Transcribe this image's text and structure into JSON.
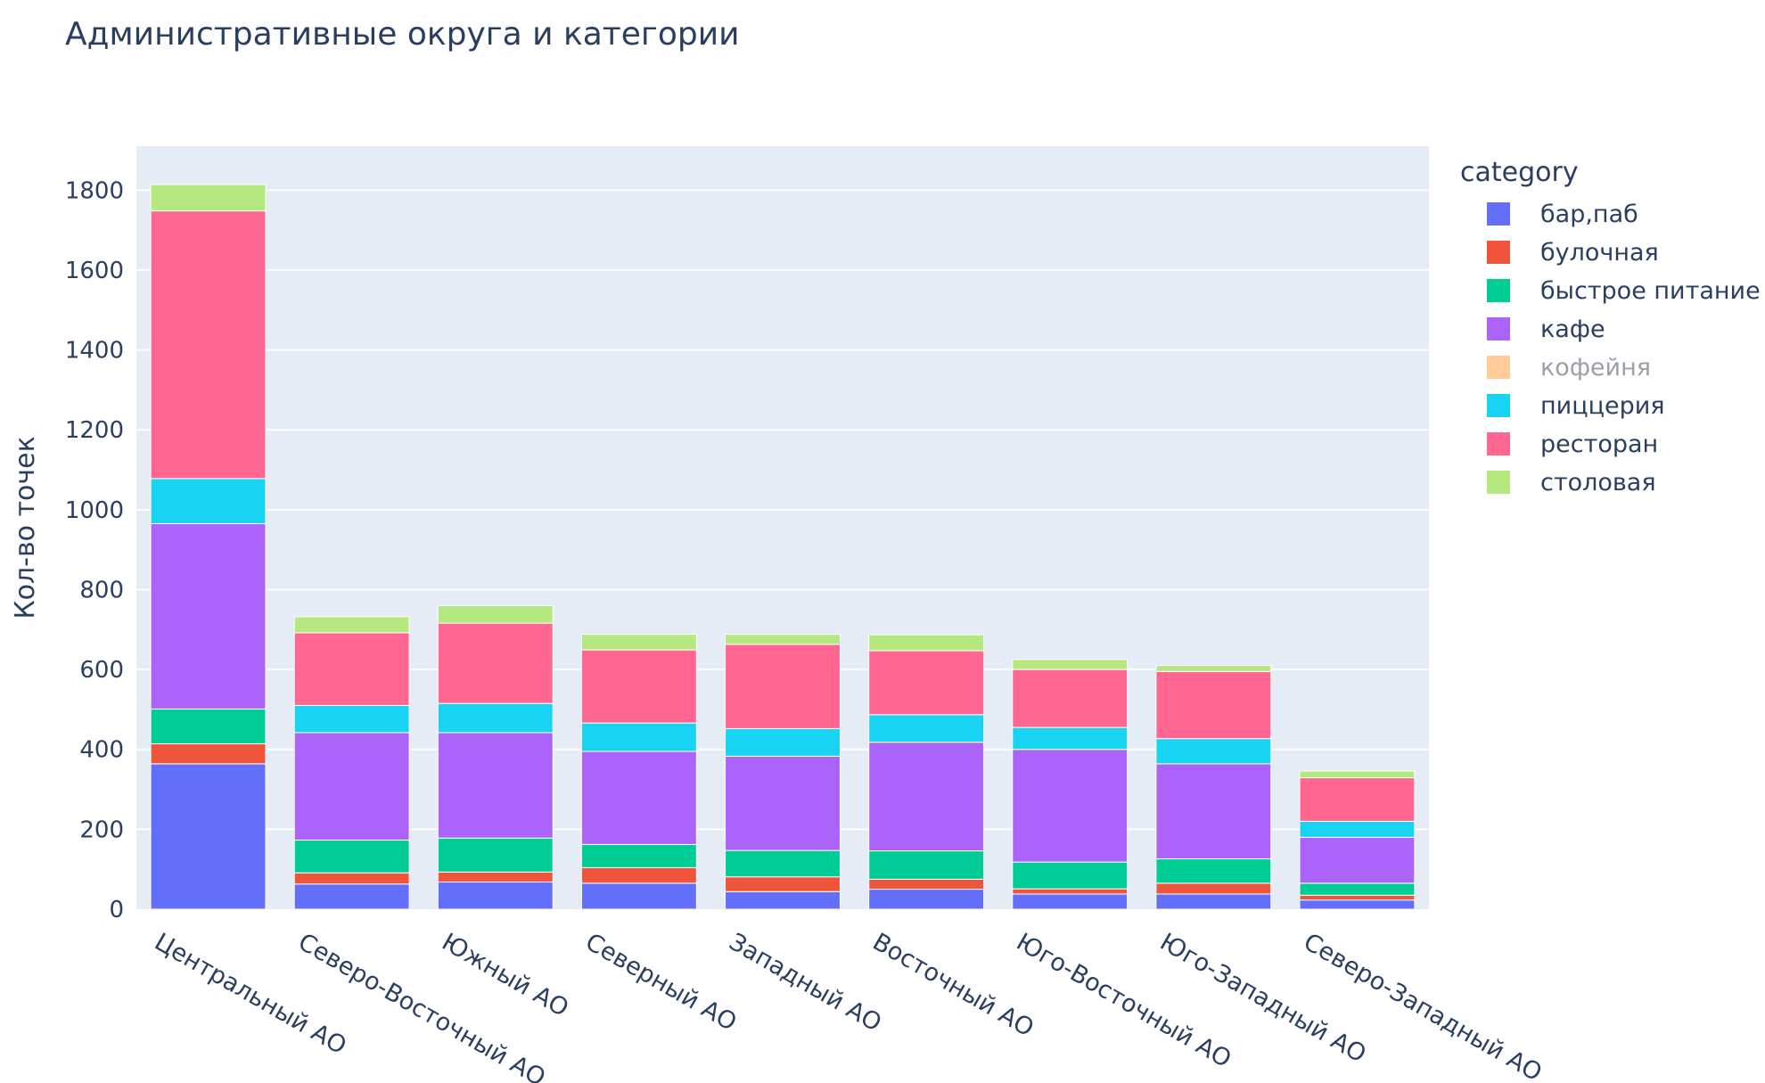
{
  "chart_data": {
    "type": "bar",
    "stacked": true,
    "title": "Административные округа и категории",
    "xlabel": "",
    "ylabel": "Кол-во точек",
    "ylim": [
      0,
      1910
    ],
    "yticks": [
      0,
      200,
      400,
      600,
      800,
      1000,
      1200,
      1400,
      1600,
      1800
    ],
    "grid": true,
    "legend_title": "category",
    "legend_position": "right",
    "categories": [
      "Центральный АО",
      "Северо-Восточный АО",
      "Южный АО",
      "Северный АО",
      "Западный АО",
      "Восточный АО",
      "Юго-Восточный АО",
      "Юго-Западный АО",
      "Северо-Западный АО"
    ],
    "series": [
      {
        "name": "бар,паб",
        "color": "#636efa",
        "visible": true,
        "values": [
          364,
          63,
          68,
          65,
          44,
          50,
          38,
          38,
          23
        ]
      },
      {
        "name": "булочная",
        "color": "#ef553b",
        "visible": true,
        "values": [
          50,
          28,
          25,
          39,
          37,
          25,
          13,
          27,
          12
        ]
      },
      {
        "name": "быстрое питание",
        "color": "#00cc96",
        "visible": true,
        "values": [
          87,
          82,
          85,
          58,
          66,
          71,
          67,
          61,
          30
        ]
      },
      {
        "name": "кафе",
        "color": "#ab63fa",
        "visible": true,
        "values": [
          464,
          269,
          264,
          233,
          236,
          272,
          282,
          238,
          115
        ]
      },
      {
        "name": "кофейня",
        "color": "#ffcc99",
        "visible": false,
        "values": [
          0,
          0,
          0,
          0,
          0,
          0,
          0,
          0,
          0
        ]
      },
      {
        "name": "пиццерия",
        "color": "#19d3f3",
        "visible": true,
        "values": [
          113,
          68,
          73,
          71,
          69,
          69,
          55,
          63,
          40
        ]
      },
      {
        "name": "ресторан",
        "color": "#ff6692",
        "visible": true,
        "values": [
          670,
          182,
          201,
          183,
          211,
          160,
          145,
          168,
          109
        ]
      },
      {
        "name": "столовая",
        "color": "#b6e880",
        "visible": true,
        "values": [
          66,
          40,
          44,
          39,
          25,
          40,
          25,
          15,
          17
        ]
      }
    ]
  }
}
